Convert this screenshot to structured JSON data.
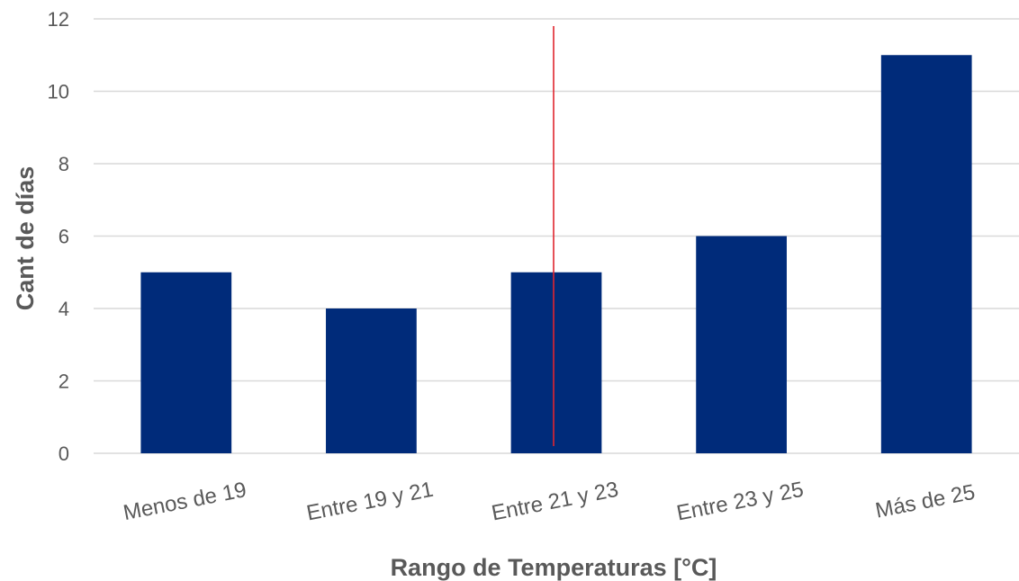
{
  "chart_data": {
    "type": "bar",
    "categories": [
      "Menos de 19",
      "Entre 19 y 21",
      "Entre 21 y 23",
      "Entre 23 y 25",
      "Más de 25"
    ],
    "values": [
      5,
      4,
      5,
      6,
      11
    ],
    "title": "",
    "xlabel": "Rango de Temperaturas [°C]",
    "ylabel": "Cant de días",
    "ylim": [
      0,
      12
    ],
    "yticks": [
      0,
      2,
      4,
      6,
      8,
      10,
      12
    ],
    "grid": true,
    "legend": "none",
    "bar_color": "#002b7a",
    "marker_line": {
      "x_category": "Entre 21 y 23",
      "y_range": [
        0.2,
        11.8
      ],
      "color": "#e0262f"
    }
  }
}
